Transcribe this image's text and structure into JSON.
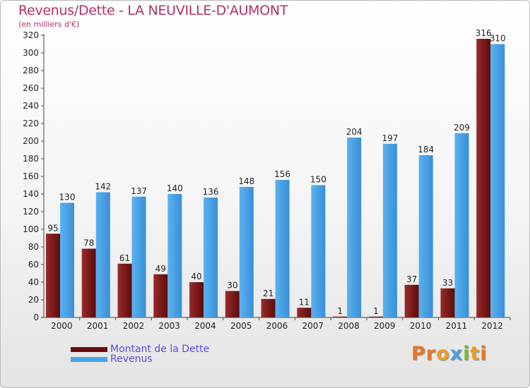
{
  "title": "Revenus/Dette - LA NEUVILLE-D'AUMONT",
  "subtitle": "(en milliers d'€)",
  "colors": {
    "title": "#b0306a",
    "dette": "#7a1515",
    "revenus": "#4aa3e6",
    "legend_text": "#5a4ee0"
  },
  "legend": {
    "dette_label": "Montant de la Dette",
    "revenus_label": "Revenus"
  },
  "logo": {
    "text": "Proxiti"
  },
  "chart_data": {
    "type": "bar",
    "categories": [
      "2000",
      "2001",
      "2002",
      "2003",
      "2004",
      "2005",
      "2006",
      "2007",
      "2008",
      "2009",
      "2010",
      "2011",
      "2012"
    ],
    "series": [
      {
        "name": "Montant de la Dette",
        "values": [
          95,
          78,
          61,
          49,
          40,
          30,
          21,
          11,
          1,
          1,
          37,
          33,
          316
        ]
      },
      {
        "name": "Revenus",
        "values": [
          130,
          142,
          137,
          140,
          136,
          148,
          156,
          150,
          204,
          197,
          184,
          209,
          310
        ]
      }
    ],
    "title": "Revenus/Dette - LA NEUVILLE-D'AUMONT",
    "ylabel": "(en milliers d'€)",
    "ylim": [
      0,
      320
    ],
    "yticks": [
      0,
      20,
      40,
      60,
      80,
      100,
      120,
      140,
      160,
      180,
      200,
      220,
      240,
      260,
      280,
      300,
      320
    ],
    "grid": false,
    "legend_position": "bottom-left",
    "data_labels": true
  }
}
